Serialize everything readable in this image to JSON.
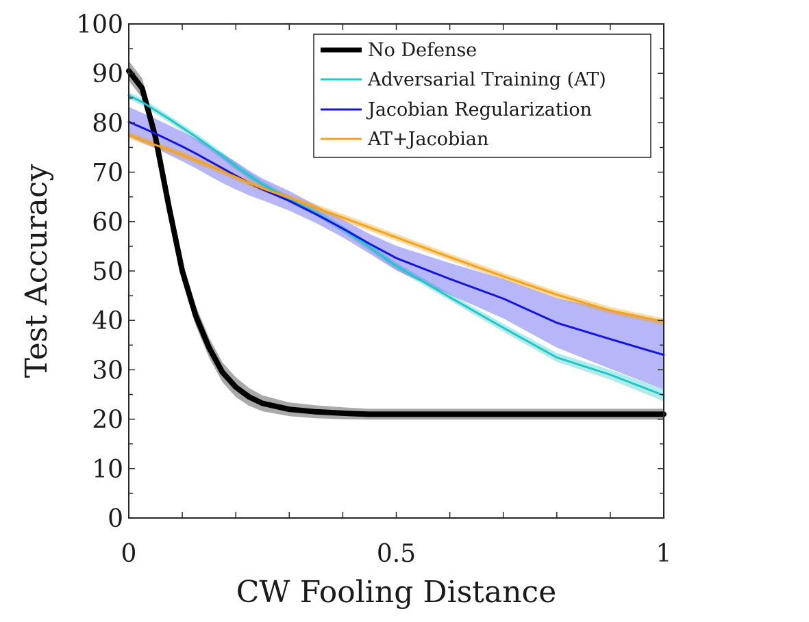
{
  "chart_data": {
    "type": "line",
    "title": "",
    "xlabel": "CW Fooling Distance",
    "ylabel": "Test Accuracy",
    "xlim": [
      0,
      1
    ],
    "ylim": [
      0,
      100
    ],
    "x_ticks": [
      0,
      0.5,
      1
    ],
    "x_tick_labels": [
      "0",
      "0.5",
      "1"
    ],
    "y_ticks": [
      0,
      10,
      20,
      30,
      40,
      50,
      60,
      70,
      80,
      90,
      100
    ],
    "y_tick_labels": [
      "0",
      "10",
      "20",
      "30",
      "40",
      "50",
      "60",
      "70",
      "80",
      "90",
      "100"
    ],
    "grid": false,
    "legend_position": "top-right",
    "x": [
      0,
      0.025,
      0.05,
      0.075,
      0.1,
      0.125,
      0.15,
      0.175,
      0.2,
      0.225,
      0.25,
      0.3,
      0.35,
      0.4,
      0.45,
      0.5,
      0.6,
      0.7,
      0.8,
      0.9,
      1.0
    ],
    "series": [
      {
        "name": "No Defense",
        "color": "#000000",
        "values": [
          90.5,
          87,
          77,
          63,
          50,
          41,
          34.5,
          29.5,
          26.5,
          24.5,
          23.2,
          22,
          21.5,
          21.2,
          21,
          21,
          21,
          21,
          21,
          21,
          21
        ],
        "band": [
          2,
          2,
          2,
          2,
          2,
          2,
          2,
          2,
          2,
          1.8,
          1.6,
          1.4,
          1.3,
          1.2,
          1.1,
          1.1,
          1.1,
          1.1,
          1.1,
          1.1,
          1.1
        ]
      },
      {
        "name": "Adversarial Training (AT)",
        "color": "#1fc7c7",
        "values": [
          85.5,
          84.2,
          82.5,
          80.8,
          79,
          77.2,
          75.3,
          73.3,
          71.2,
          69.3,
          67.5,
          64.5,
          61.8,
          58.5,
          54.8,
          51,
          44.7,
          38.5,
          32.5,
          29,
          24.8
        ],
        "band": [
          0.7,
          0.7,
          0.7,
          0.7,
          0.7,
          0.7,
          0.7,
          0.7,
          0.7,
          0.7,
          0.7,
          0.7,
          0.7,
          0.7,
          0.7,
          0.7,
          0.7,
          0.8,
          0.9,
          1,
          1.2
        ]
      },
      {
        "name": "Jacobian Regularization",
        "color": "#1414e0",
        "values": [
          80.2,
          79,
          77.8,
          76.5,
          75.2,
          73.8,
          72.3,
          70.8,
          69.3,
          67.8,
          66.5,
          64.2,
          61.5,
          58.6,
          55.5,
          52.6,
          48.4,
          44.4,
          39.5,
          36.2,
          33
        ],
        "band": [
          3,
          3,
          3,
          3,
          3,
          3,
          3,
          3,
          2.8,
          2.5,
          2.2,
          2,
          1.8,
          1.8,
          2,
          2.5,
          3.2,
          4,
          5,
          6,
          7
        ]
      },
      {
        "name": "AT+Jacobian",
        "color": "#f5a31a",
        "values": [
          77.5,
          76.5,
          75.5,
          74.5,
          73.5,
          72.4,
          71.3,
          70.2,
          69,
          67.8,
          66.7,
          64.8,
          62.8,
          60.8,
          58.8,
          56.8,
          52.8,
          48.9,
          45.2,
          42,
          39.7
        ],
        "band": [
          0.7,
          0.7,
          0.7,
          0.7,
          0.7,
          0.7,
          0.7,
          0.7,
          0.7,
          0.7,
          0.7,
          0.7,
          0.7,
          0.7,
          0.7,
          0.7,
          0.7,
          0.7,
          0.7,
          0.7,
          0.7
        ]
      }
    ]
  }
}
